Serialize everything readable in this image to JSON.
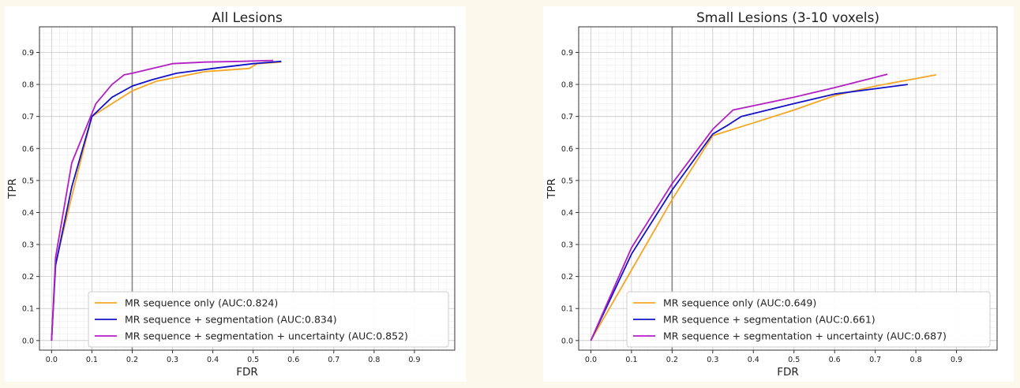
{
  "chart_data": [
    {
      "type": "line",
      "title": "All Lesions",
      "xlabel": "FDR",
      "ylabel": "TPR",
      "xlim": [
        -0.03,
        1.0
      ],
      "ylim": [
        -0.03,
        0.98
      ],
      "xticks": [
        0.0,
        0.1,
        0.2,
        0.3,
        0.4,
        0.5,
        0.6,
        0.7,
        0.8,
        0.9
      ],
      "yticks": [
        0.0,
        0.1,
        0.2,
        0.3,
        0.4,
        0.5,
        0.6,
        0.7,
        0.8,
        0.9
      ],
      "grid": true,
      "vline_x": 0.2,
      "legend_position": "lower-right",
      "series": [
        {
          "name": "MR sequence only (AUC:0.824)",
          "color": "#f5a623",
          "x": [
            0.0,
            0.01,
            0.05,
            0.1,
            0.15,
            0.2,
            0.26,
            0.3,
            0.38,
            0.49,
            0.51,
            0.57
          ],
          "y": [
            0.0,
            0.24,
            0.45,
            0.7,
            0.74,
            0.78,
            0.81,
            0.82,
            0.84,
            0.85,
            0.865,
            0.87
          ]
        },
        {
          "name": "MR sequence + segmentation (AUC:0.834)",
          "color": "#1212c8",
          "x": [
            0.0,
            0.01,
            0.05,
            0.1,
            0.15,
            0.2,
            0.25,
            0.31,
            0.4,
            0.5,
            0.57
          ],
          "y": [
            0.0,
            0.235,
            0.48,
            0.7,
            0.76,
            0.795,
            0.815,
            0.835,
            0.85,
            0.865,
            0.872
          ]
        },
        {
          "name": "MR sequence + segmentation + uncertainty (AUC:0.852)",
          "color": "#b31fc4",
          "x": [
            0.0,
            0.01,
            0.05,
            0.11,
            0.15,
            0.18,
            0.2,
            0.3,
            0.38,
            0.47,
            0.55
          ],
          "y": [
            0.0,
            0.26,
            0.555,
            0.74,
            0.8,
            0.83,
            0.835,
            0.865,
            0.87,
            0.872,
            0.875
          ]
        }
      ]
    },
    {
      "type": "line",
      "title": "Small Lesions (3-10 voxels)",
      "xlabel": "FDR",
      "ylabel": "TPR",
      "xlim": [
        -0.03,
        1.0
      ],
      "ylim": [
        -0.03,
        0.98
      ],
      "xticks": [
        0.0,
        0.1,
        0.2,
        0.3,
        0.4,
        0.5,
        0.6,
        0.7,
        0.8,
        0.9
      ],
      "yticks": [
        0.0,
        0.1,
        0.2,
        0.3,
        0.4,
        0.5,
        0.6,
        0.7,
        0.8,
        0.9
      ],
      "grid": true,
      "vline_x": 0.2,
      "legend_position": "lower-right",
      "series": [
        {
          "name": "MR sequence only (AUC:0.649)",
          "color": "#f5a623",
          "x": [
            0.0,
            0.1,
            0.2,
            0.3,
            0.4,
            0.5,
            0.6,
            0.7,
            0.85
          ],
          "y": [
            0.0,
            0.22,
            0.44,
            0.64,
            0.68,
            0.72,
            0.765,
            0.795,
            0.83
          ]
        },
        {
          "name": "MR sequence + segmentation (AUC:0.661)",
          "color": "#1212c8",
          "x": [
            0.0,
            0.1,
            0.2,
            0.3,
            0.34,
            0.37,
            0.5,
            0.6,
            0.78
          ],
          "y": [
            0.0,
            0.27,
            0.47,
            0.645,
            0.675,
            0.7,
            0.74,
            0.77,
            0.8
          ]
        },
        {
          "name": "MR sequence + segmentation + uncertainty (AUC:0.687)",
          "color": "#b31fc4",
          "x": [
            0.0,
            0.1,
            0.2,
            0.3,
            0.35,
            0.5,
            0.6,
            0.73
          ],
          "y": [
            0.0,
            0.29,
            0.49,
            0.66,
            0.72,
            0.76,
            0.79,
            0.832
          ]
        }
      ]
    }
  ]
}
